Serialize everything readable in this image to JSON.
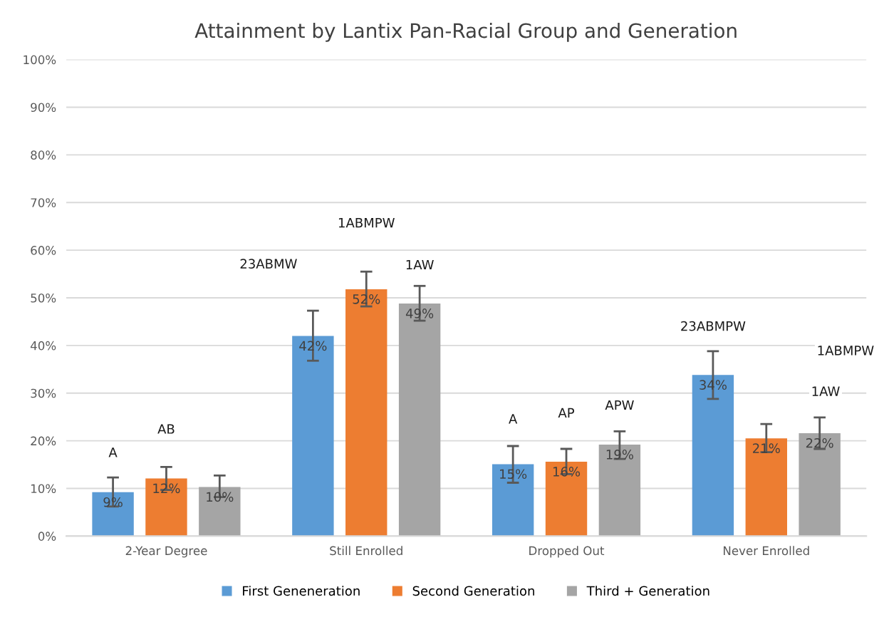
{
  "chart_data": {
    "type": "bar",
    "title": "Attainment by Lantix Pan-Racial Group and Generation",
    "categories": [
      "2-Year Degree",
      "Still Enrolled",
      "Dropped Out",
      "Never Enrolled"
    ],
    "series": [
      {
        "name": "First Geneneration",
        "color": "#5b9bd5",
        "values": [
          9.2,
          42.0,
          15.1,
          33.8
        ],
        "errors": [
          [
            6.2,
            12.3
          ],
          [
            36.8,
            47.3
          ],
          [
            11.2,
            18.9
          ],
          [
            28.8,
            38.8
          ]
        ],
        "value_labels": [
          "9%",
          "42%",
          "15%",
          "34%"
        ]
      },
      {
        "name": "Second Generation",
        "color": "#ed7d31",
        "values": [
          12.1,
          51.8,
          15.6,
          20.5
        ],
        "errors": [
          [
            9.7,
            14.5
          ],
          [
            48.2,
            55.5
          ],
          [
            13.0,
            18.3
          ],
          [
            17.6,
            23.5
          ]
        ],
        "value_labels": [
          "12%",
          "52%",
          "16%",
          "21%"
        ]
      },
      {
        "name": "Third + Generation",
        "color": "#a5a5a5",
        "values": [
          10.3,
          48.8,
          19.2,
          21.6
        ],
        "errors": [
          [
            8.2,
            12.7
          ],
          [
            45.2,
            52.5
          ],
          [
            16.2,
            22.0
          ],
          [
            18.3,
            24.9
          ]
        ],
        "value_labels": [
          "10%",
          "49%",
          "19%",
          "22%"
        ]
      }
    ],
    "annotations": [
      "A",
      "AB",
      "23ABMW",
      "1ABMPW",
      "1AW",
      "A",
      "AP",
      "APW",
      "23ABMPW",
      "1ABMPW",
      "1AW"
    ],
    "ylim": [
      0,
      100
    ],
    "yticks": [
      {
        "value": 0,
        "label": "0%"
      },
      {
        "value": 10,
        "label": "10%"
      },
      {
        "value": 20,
        "label": "20%"
      },
      {
        "value": 30,
        "label": "30%"
      },
      {
        "value": 40,
        "label": "40%"
      },
      {
        "value": 50,
        "label": "50%"
      },
      {
        "value": 60,
        "label": "60%"
      },
      {
        "value": 70,
        "label": "70%"
      },
      {
        "value": 80,
        "label": "80%"
      },
      {
        "value": 90,
        "label": "90%"
      },
      {
        "value": 100,
        "label": "100%"
      }
    ],
    "grid": "y",
    "legend": "bottom"
  }
}
